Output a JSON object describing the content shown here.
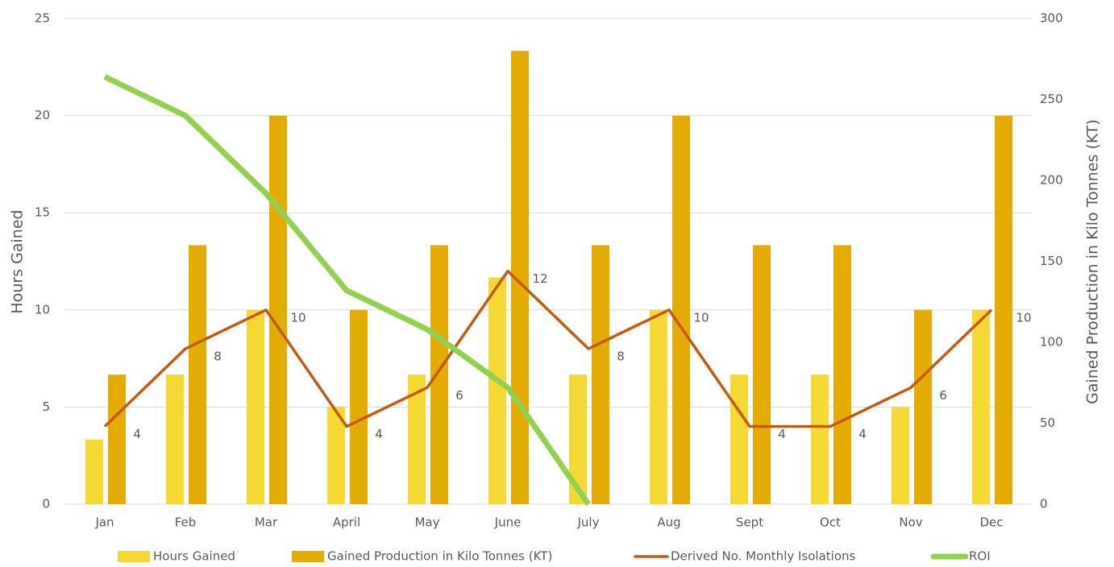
{
  "chart_data": {
    "type": "bar-line",
    "y_label": "Hours Gained",
    "y2_label": "Gained Production in Kilo Tonnes (KT)",
    "categories": [
      "Jan",
      "Feb",
      "Mar",
      "April",
      "May",
      "June",
      "July",
      "Aug",
      "Sept",
      "Oct",
      "Nov",
      "Dec"
    ],
    "ylim": [
      0,
      25
    ],
    "yticks": [
      0,
      5,
      10,
      15,
      20,
      25
    ],
    "y2lim": [
      0,
      300
    ],
    "y2ticks": [
      0,
      50,
      100,
      150,
      200,
      250,
      300
    ],
    "grid": true,
    "legend": "bottom",
    "series": [
      {
        "name": "Hours Gained",
        "type": "bar",
        "color": "#f4d935",
        "values": [
          3.33,
          6.67,
          10,
          5,
          6.67,
          11.67,
          6.67,
          10,
          6.67,
          6.67,
          5,
          10
        ]
      },
      {
        "name": "Gained Production in Kilo Tonnes (KT)",
        "type": "bar",
        "axis": "y2",
        "color": "#e5ac00",
        "values": [
          80,
          160,
          240,
          120,
          160,
          280,
          160,
          240,
          160,
          160,
          120,
          240
        ]
      },
      {
        "name": "Derived No. Monthly Isolations",
        "type": "line",
        "color": "#c55a11",
        "data_labels": true,
        "values": [
          4,
          8,
          10,
          4,
          6,
          12,
          8,
          10,
          4,
          4,
          6,
          10
        ]
      },
      {
        "name": "ROI",
        "type": "line",
        "color": "#92d050",
        "values": [
          22,
          20,
          16,
          11,
          9,
          6,
          0,
          null,
          null,
          null,
          null,
          null
        ]
      }
    ]
  }
}
